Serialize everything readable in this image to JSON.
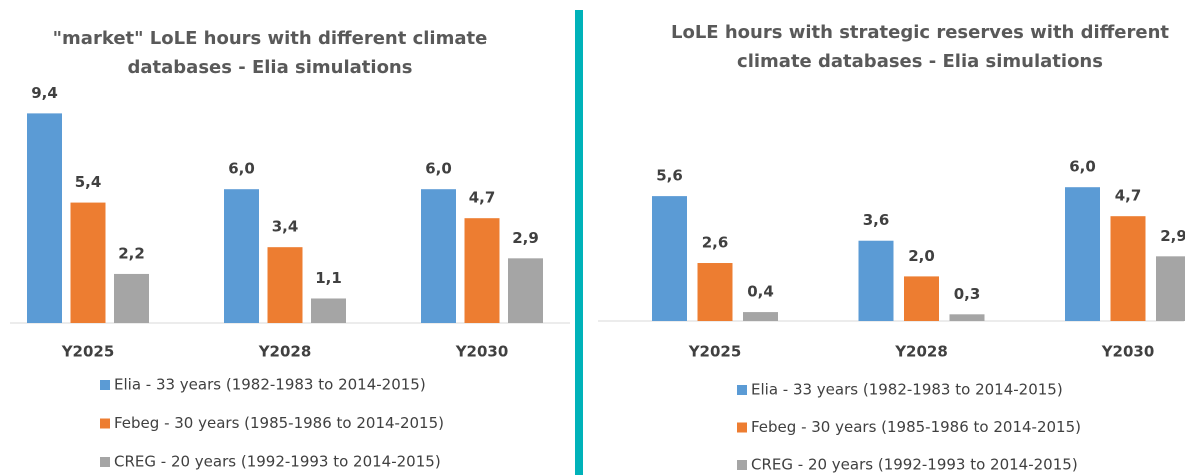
{
  "chart_data": [
    {
      "type": "bar",
      "title": "\"market\" LoLE hours with different climate databases - Elia simulations",
      "categories": [
        "Y2025",
        "Y2028",
        "Y2030"
      ],
      "series": [
        {
          "name": "Elia - 33 years (1982-1983 to 2014-2015)",
          "color": "#5b9bd5",
          "values": [
            9.4,
            6.0,
            6.0
          ],
          "value_labels": [
            "9,4",
            "6,0",
            "6,0"
          ]
        },
        {
          "name": "Febeg - 30 years (1985-1986 to 2014-2015)",
          "color": "#ed7d31",
          "values": [
            5.4,
            3.4,
            4.7
          ],
          "value_labels": [
            "5,4",
            "3,4",
            "4,7"
          ]
        },
        {
          "name": "CREG - 20 years (1992-1993 to 2014-2015)",
          "color": "#a5a5a5",
          "values": [
            2.2,
            1.1,
            2.9
          ],
          "value_labels": [
            "2,2",
            "1,1",
            "2,9"
          ]
        }
      ]
    },
    {
      "type": "bar",
      "title": "LoLE hours with strategic reserves with different climate databases - Elia simulations",
      "categories": [
        "Y2025",
        "Y2028",
        "Y2030"
      ],
      "series": [
        {
          "name": "Elia - 33 years (1982-1983 to 2014-2015)",
          "color": "#5b9bd5",
          "values": [
            5.6,
            3.6,
            6.0
          ],
          "value_labels": [
            "5,6",
            "3,6",
            "6,0"
          ]
        },
        {
          "name": "Febeg - 30 years (1985-1986 to 2014-2015)",
          "color": "#ed7d31",
          "values": [
            2.6,
            2.0,
            4.7
          ],
          "value_labels": [
            "2,6",
            "2,0",
            "4,7"
          ]
        },
        {
          "name": "CREG - 20 years (1992-1993 to 2014-2015)",
          "color": "#a5a5a5",
          "values": [
            0.4,
            0.3,
            2.9
          ],
          "value_labels": [
            "0,4",
            "0,3",
            "2,9"
          ]
        }
      ]
    }
  ]
}
